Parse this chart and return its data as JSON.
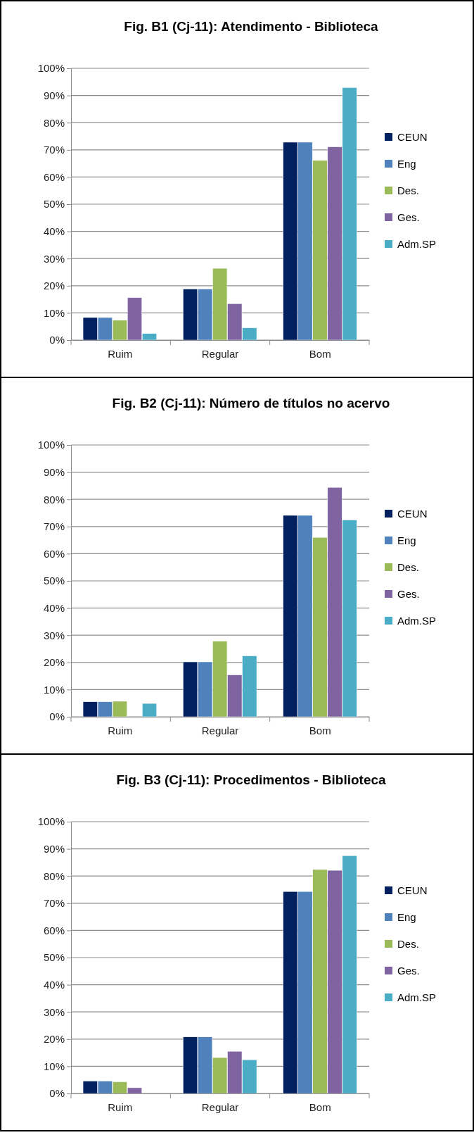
{
  "chart_data": [
    {
      "type": "bar",
      "title": "Fig. B1 (Cj-11): Atendimento - Biblioteca",
      "categories": [
        "Ruim",
        "Regular",
        "Bom"
      ],
      "series": [
        {
          "name": "CEUN",
          "color": "#002060",
          "values": [
            8.3,
            18.8,
            72.8
          ]
        },
        {
          "name": "Eng",
          "color": "#4f81bd",
          "values": [
            8.3,
            18.8,
            72.8
          ]
        },
        {
          "name": "Des.",
          "color": "#9bbb59",
          "values": [
            7.3,
            26.4,
            66.1
          ]
        },
        {
          "name": "Ges.",
          "color": "#8064a2",
          "values": [
            15.6,
            13.4,
            71.1
          ]
        },
        {
          "name": "Adm.SP",
          "color": "#4bacc6",
          "values": [
            2.4,
            4.5,
            92.9
          ]
        }
      ],
      "ylim": [
        0,
        100
      ],
      "yticks": [
        {
          "value": 0,
          "label": "0%"
        },
        {
          "value": 10,
          "label": "10%"
        },
        {
          "value": 20,
          "label": "20%"
        },
        {
          "value": 30,
          "label": "30%"
        },
        {
          "value": 40,
          "label": "40%"
        },
        {
          "value": 50,
          "label": "50%"
        },
        {
          "value": 60,
          "label": "60%"
        },
        {
          "value": 70,
          "label": "70%"
        },
        {
          "value": 80,
          "label": "80%"
        },
        {
          "value": 90,
          "label": "90%"
        },
        {
          "value": 100,
          "label": "100%"
        }
      ],
      "grid": "y",
      "legend": "right"
    },
    {
      "type": "bar",
      "title": "Fig. B2 (Cj-11): Número de títulos no acervo",
      "categories": [
        "Ruim",
        "Regular",
        "Bom"
      ],
      "series": [
        {
          "name": "CEUN",
          "color": "#002060",
          "values": [
            5.5,
            20.2,
            74.1
          ]
        },
        {
          "name": "Eng",
          "color": "#4f81bd",
          "values": [
            5.5,
            20.2,
            74.1
          ]
        },
        {
          "name": "Des.",
          "color": "#9bbb59",
          "values": [
            5.7,
            27.8,
            66.0
          ]
        },
        {
          "name": "Ges.",
          "color": "#8064a2",
          "values": [
            0,
            15.4,
            84.4
          ]
        },
        {
          "name": "Adm.SP",
          "color": "#4bacc6",
          "values": [
            4.9,
            22.4,
            72.4
          ]
        }
      ],
      "ylim": [
        0,
        100
      ],
      "yticks": [
        {
          "value": 0,
          "label": "0%"
        },
        {
          "value": 10,
          "label": "10%"
        },
        {
          "value": 20,
          "label": "20%"
        },
        {
          "value": 30,
          "label": "30%"
        },
        {
          "value": 40,
          "label": "40%"
        },
        {
          "value": 50,
          "label": "50%"
        },
        {
          "value": 60,
          "label": "60%"
        },
        {
          "value": 70,
          "label": "70%"
        },
        {
          "value": 80,
          "label": "80%"
        },
        {
          "value": 90,
          "label": "90%"
        },
        {
          "value": 100,
          "label": "100%"
        }
      ],
      "grid": "y",
      "legend": "right"
    },
    {
      "type": "bar",
      "title": "Fig. B3 (Cj-11): Procedimentos - Biblioteca",
      "categories": [
        "Ruim",
        "Regular",
        "Bom"
      ],
      "series": [
        {
          "name": "CEUN",
          "color": "#002060",
          "values": [
            4.6,
            20.8,
            74.3
          ]
        },
        {
          "name": "Eng",
          "color": "#4f81bd",
          "values": [
            4.6,
            20.8,
            74.3
          ]
        },
        {
          "name": "Des.",
          "color": "#9bbb59",
          "values": [
            4.3,
            13.2,
            82.4
          ]
        },
        {
          "name": "Ges.",
          "color": "#8064a2",
          "values": [
            2.1,
            15.5,
            82.1
          ]
        },
        {
          "name": "Adm.SP",
          "color": "#4bacc6",
          "values": [
            0,
            12.4,
            87.5
          ]
        }
      ],
      "ylim": [
        0,
        100
      ],
      "yticks": [
        {
          "value": 0,
          "label": "0%"
        },
        {
          "value": 10,
          "label": "10%"
        },
        {
          "value": 20,
          "label": "20%"
        },
        {
          "value": 30,
          "label": "30%"
        },
        {
          "value": 40,
          "label": "40%"
        },
        {
          "value": 50,
          "label": "50%"
        },
        {
          "value": 60,
          "label": "60%"
        },
        {
          "value": 70,
          "label": "70%"
        },
        {
          "value": 80,
          "label": "80%"
        },
        {
          "value": 90,
          "label": "90%"
        },
        {
          "value": 100,
          "label": "100%"
        }
      ],
      "grid": "y",
      "legend": "right"
    }
  ]
}
